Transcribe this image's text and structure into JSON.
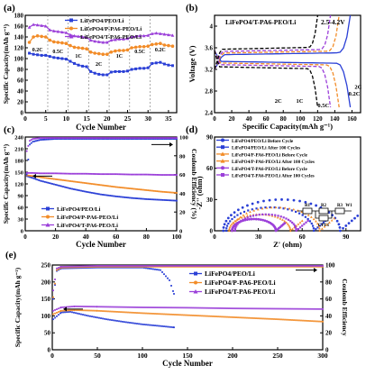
{
  "colors": {
    "liFePO4_PEO": "#2a3fd6",
    "liFePO4_P_PA6": "#f28c28",
    "liFePO4_T_PA6": "#9b3fd9",
    "black": "#000000"
  },
  "chart_data": [
    {
      "panel": "(a)",
      "type": "scatter",
      "xlabel": "Cycle Number",
      "ylabel": "Specific Capacity(mAh g⁻¹)",
      "xlim": [
        0,
        37
      ],
      "ylim": [
        0,
        180
      ],
      "xticks": [
        0,
        5,
        10,
        15,
        20,
        25,
        30,
        35
      ],
      "yticks": [
        0,
        20,
        40,
        60,
        80,
        100,
        120,
        140,
        160,
        180
      ],
      "rate_labels": [
        {
          "text": "0.2C",
          "x": 3
        },
        {
          "text": "0.5C",
          "x": 8
        },
        {
          "text": "1C",
          "x": 13
        },
        {
          "text": "2C",
          "x": 18
        },
        {
          "text": "1C",
          "x": 23
        },
        {
          "text": "0.5C",
          "x": 28
        },
        {
          "text": "0.2C",
          "x": 33
        }
      ],
      "legend": [
        "LiFePO4/PEO/Li",
        "LiFePO4/P-PA6-PEO/Li",
        "LiFePO4/T-PA6-PEO/Li"
      ],
      "series": [
        {
          "name": "LiFePO4/PEO/Li",
          "color_key": "liFePO4_PEO",
          "x": [
            1,
            2,
            3,
            4,
            5,
            6,
            7,
            8,
            9,
            10,
            11,
            12,
            13,
            14,
            15,
            16,
            17,
            18,
            19,
            20,
            21,
            22,
            23,
            24,
            25,
            26,
            27,
            28,
            29,
            30,
            31,
            32,
            33,
            34,
            35,
            36
          ],
          "y": [
            110,
            108,
            107,
            106,
            106,
            104,
            102,
            101,
            100,
            99,
            95,
            91,
            88,
            86,
            85,
            76,
            73,
            71,
            70,
            70,
            75,
            76,
            76,
            76,
            77,
            80,
            81,
            82,
            82,
            83,
            91,
            92,
            93,
            90,
            88,
            87
          ]
        },
        {
          "name": "LiFePO4/P-PA6-PEO/Li",
          "color_key": "liFePO4_P_PA6",
          "x": [
            1,
            2,
            3,
            4,
            5,
            6,
            7,
            8,
            9,
            10,
            11,
            12,
            13,
            14,
            15,
            16,
            17,
            18,
            19,
            20,
            21,
            22,
            23,
            24,
            25,
            26,
            27,
            28,
            29,
            30,
            31,
            32,
            33,
            34,
            35,
            36
          ],
          "y": [
            130,
            140,
            142,
            141,
            140,
            134,
            131,
            130,
            129,
            128,
            124,
            121,
            120,
            119,
            118,
            112,
            110,
            109,
            108,
            108,
            112,
            114,
            115,
            115,
            116,
            120,
            121,
            122,
            122,
            123,
            126,
            127,
            128,
            125,
            124,
            123
          ]
        },
        {
          "name": "LiFePO4/T-PA6-PEO/Li",
          "color_key": "liFePO4_T_PA6",
          "x": [
            1,
            2,
            3,
            4,
            5,
            6,
            7,
            8,
            9,
            10,
            11,
            12,
            13,
            14,
            15,
            16,
            17,
            18,
            19,
            20,
            21,
            22,
            23,
            24,
            25,
            26,
            27,
            28,
            29,
            30,
            31,
            32,
            33,
            34,
            35,
            36
          ],
          "y": [
            158,
            163,
            162,
            161,
            160,
            153,
            151,
            150,
            149,
            148,
            144,
            142,
            141,
            140,
            139,
            134,
            132,
            131,
            130,
            130,
            134,
            135,
            136,
            136,
            137,
            140,
            141,
            142,
            142,
            143,
            146,
            147,
            146,
            145,
            144,
            143
          ]
        }
      ]
    },
    {
      "panel": "(b)",
      "type": "line",
      "title": "LiFePO4/T-PA6-PEO/Li",
      "range_label": "2.5-4.2V",
      "xlabel": "Specific Capacity(mAh g⁻¹)",
      "ylabel": "Voltage (V)",
      "xlim": [
        0,
        170
      ],
      "ylim": [
        2.4,
        4.2
      ],
      "xticks": [
        0,
        20,
        40,
        60,
        80,
        100,
        120,
        140,
        160
      ],
      "yticks": [
        2.4,
        2.8,
        3.2,
        3.6,
        4.0
      ],
      "rate_labels": [
        "2C",
        "1C",
        "0.5C",
        "0.2C",
        "2C"
      ],
      "series": [
        {
          "name": "0.2C",
          "style": "solid",
          "color_key": "liFePO4_PEO",
          "capacity": 158
        },
        {
          "name": "0.5C",
          "style": "dash",
          "color_key": "liFePO4_P_PA6",
          "capacity": 145
        },
        {
          "name": "1C",
          "style": "dash",
          "color_key": "liFePO4_T_PA6",
          "capacity": 135
        },
        {
          "name": "2C",
          "style": "dash",
          "color_key": "black",
          "capacity": 120
        }
      ]
    },
    {
      "panel": "(c)",
      "type": "scatter",
      "xlabel": "Cycle Number",
      "ylabel": "Specific Capacity(mAh g⁻¹)",
      "ylabel_right": "Coulomb Efficiency (%)",
      "xlim": [
        0,
        100
      ],
      "ylim": [
        0,
        240
      ],
      "ylim_right": [
        0,
        100
      ],
      "xticks": [
        0,
        20,
        40,
        60,
        80,
        100
      ],
      "yticks": [
        0,
        30,
        60,
        90,
        120,
        150,
        180,
        210,
        240
      ],
      "yticks_right": [
        0,
        20,
        40,
        60,
        80,
        100
      ],
      "legend": [
        "LiFePO4/PEO/Li",
        "LiFePO4/P-PA6-PEO/Li",
        "LiFePO4/T-PA6-PEO/Li"
      ],
      "series": [
        {
          "name": "LiFePO4/PEO/Li",
          "color_key": "liFePO4_PEO",
          "x": [
            1,
            5,
            10,
            20,
            30,
            40,
            50,
            60,
            70,
            80,
            90,
            100
          ],
          "y": [
            140,
            135,
            128,
            118,
            108,
            100,
            93,
            88,
            84,
            81,
            79,
            77
          ]
        },
        {
          "name": "LiFePO4/P-PA6-PEO/Li",
          "color_key": "liFePO4_P_PA6",
          "x": [
            1,
            5,
            10,
            20,
            30,
            40,
            50,
            60,
            70,
            80,
            90,
            100
          ],
          "y": [
            142,
            140,
            137,
            132,
            127,
            122,
            117,
            112,
            108,
            104,
            100,
            97
          ]
        },
        {
          "name": "LiFePO4/T-PA6-PEO/Li",
          "color_key": "liFePO4_T_PA6",
          "x": [
            1,
            5,
            10,
            20,
            30,
            40,
            50,
            60,
            70,
            80,
            90,
            100
          ],
          "y": [
            148,
            148,
            147,
            147,
            146,
            146,
            145,
            145,
            144,
            144,
            143,
            143
          ]
        }
      ],
      "efficiency": [
        {
          "name": "LiFePO4/PEO/Li",
          "color_key": "liFePO4_PEO",
          "x": [
            1,
            3,
            5,
            10,
            20,
            40,
            60,
            80,
            100
          ],
          "y": [
            60,
            92,
            95,
            97,
            98,
            98,
            98,
            98,
            98
          ]
        },
        {
          "name": "LiFePO4/T-PA6-PEO/Li",
          "color_key": "liFePO4_T_PA6",
          "x": [
            1,
            3,
            5,
            10,
            20,
            40,
            60,
            80,
            100
          ],
          "y": [
            85,
            96,
            98,
            99,
            99,
            99,
            99,
            99,
            99
          ]
        }
      ]
    },
    {
      "panel": "(d)",
      "type": "scatter",
      "xlabel": "Z' (ohm)",
      "ylabel": "-Z'' (ohm)",
      "xlim": [
        0,
        100
      ],
      "ylim": [
        0,
        90
      ],
      "xticks": [
        0,
        30,
        60,
        90
      ],
      "yticks": [
        0,
        30,
        60,
        90
      ],
      "circuit_labels": [
        "R1",
        "R2",
        "R3",
        "W1",
        "CPE1"
      ],
      "legend": [
        "LiFePO4/PEO/Li Before Cycle",
        "LiFePO4/PEO/Li After 100 Cycles",
        "LiFePO4/P-PA6-PEO/Li Before Cycle",
        "LiFePO4/P-PA6-PEO/Li After 100 Cycles",
        "LiFePO4/T-PA6-PEO/Li Before Cycle",
        "LiFePO4/T-PA6-PEO/Li After 100 Cycles"
      ]
    },
    {
      "panel": "(e)",
      "type": "scatter",
      "xlabel": "Cycle Number",
      "ylabel": "Specific Capacity(mAh g⁻¹)",
      "ylabel_right": "Coulomb Efficiency",
      "xlim": [
        0,
        300
      ],
      "ylim": [
        0,
        250
      ],
      "ylim_right": [
        0,
        100
      ],
      "xticks": [
        0,
        50,
        100,
        150,
        200,
        250,
        300
      ],
      "yticks": [
        0,
        50,
        100,
        150,
        200,
        250
      ],
      "yticks_right": [
        0,
        20,
        40,
        60,
        80,
        100
      ],
      "legend": [
        "LiFePO4/PEO/Li",
        "LiFePO4/P-PA6-PEO/Li",
        "LiFePO4/T-PA6-PEO/Li"
      ],
      "series": [
        {
          "name": "LiFePO4/PEO/Li",
          "color_key": "liFePO4_PEO",
          "x": [
            1,
            10,
            20,
            40,
            60,
            80,
            100,
            120,
            135
          ],
          "y": [
            90,
            110,
            112,
            100,
            90,
            82,
            75,
            70,
            66
          ]
        },
        {
          "name": "LiFePO4/P-PA6-PEO/Li",
          "color_key": "liFePO4_P_PA6",
          "x": [
            1,
            10,
            25,
            50,
            100,
            150,
            200,
            250,
            300
          ],
          "y": [
            105,
            115,
            117,
            115,
            108,
            102,
            96,
            90,
            83
          ]
        },
        {
          "name": "LiFePO4/T-PA6-PEO/Li",
          "color_key": "liFePO4_T_PA6",
          "x": [
            1,
            10,
            25,
            50,
            100,
            150,
            200,
            250,
            300
          ],
          "y": [
            115,
            125,
            128,
            127,
            125,
            124,
            122,
            121,
            120
          ]
        }
      ],
      "efficiency": [
        {
          "name": "LiFePO4/PEO/Li",
          "color_key": "liFePO4_PEO",
          "x": [
            1,
            5,
            10,
            50,
            100,
            120,
            130,
            135
          ],
          "y": [
            60,
            93,
            96,
            97,
            97,
            94,
            82,
            66
          ]
        },
        {
          "name": "LiFePO4/P-PA6-PEO/Li",
          "color_key": "liFePO4_P_PA6",
          "x": [
            1,
            5,
            10,
            50,
            100,
            150,
            200,
            250,
            300
          ],
          "y": [
            62,
            94,
            97,
            98,
            98,
            98,
            98,
            98,
            98
          ]
        },
        {
          "name": "LiFePO4/T-PA6-PEO/Li",
          "color_key": "liFePO4_T_PA6",
          "x": [
            1,
            5,
            10,
            50,
            100,
            150,
            200,
            250,
            300
          ],
          "y": [
            70,
            96,
            98,
            99,
            99,
            99,
            99,
            99,
            99
          ]
        }
      ]
    }
  ]
}
